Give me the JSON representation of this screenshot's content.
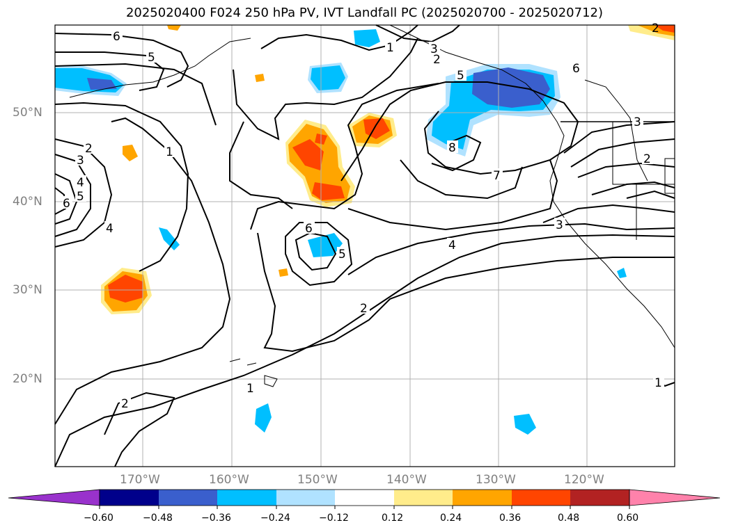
{
  "title": "2025020400 F024 250 hPa PV, IVT Landfall PC (2025020700 - 2025020712)",
  "map": {
    "lat_labels": [
      "50°N",
      "40°N",
      "30°N",
      "20°N"
    ],
    "lon_labels": [
      "170°W",
      "160°W",
      "150°W",
      "140°W",
      "130°W",
      "120°W"
    ],
    "contour_labels": [
      "6",
      "5",
      "1",
      "2",
      "3",
      "4",
      "5",
      "6",
      "2",
      "3",
      "5",
      "6",
      "4",
      "1",
      "2",
      "1",
      "2",
      "6",
      "5",
      "8",
      "7",
      "3",
      "2",
      "3",
      "4",
      "2",
      "1"
    ]
  },
  "colorbar": {
    "ticks": [
      "−0.60",
      "−0.48",
      "−0.36",
      "−0.24",
      "−0.12",
      "0.12",
      "0.24",
      "0.36",
      "0.48",
      "0.60"
    ],
    "colors": {
      "under": "#9932cc",
      "b1": "#00008b",
      "b2": "#3a5fcd",
      "b3": "#00bfff",
      "b4": "#b0e2ff",
      "mid": "#ffffff",
      "p1": "#ffec8b",
      "p2": "#ffa500",
      "p3": "#ff4500",
      "p4": "#b22222",
      "over": "#ff82ab"
    }
  }
}
